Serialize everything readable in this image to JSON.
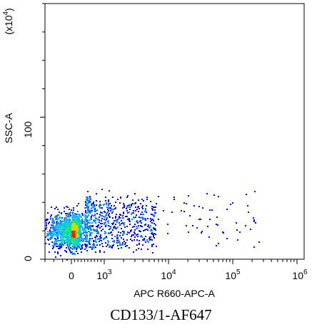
{
  "caption": "CD133/1-AF647",
  "chart_data": {
    "type": "scatter",
    "plot_style": "flow-cytometry density dot plot",
    "x_axis": {
      "label": "APC R660-APC-A",
      "scale": "biexponential (linear near 0, log above 10^3)",
      "ticks": [
        {
          "value": 0,
          "label": "0"
        },
        {
          "value": 1000,
          "label": "10",
          "exp": "3"
        },
        {
          "value": 10000,
          "label": "10",
          "exp": "4"
        },
        {
          "value": 100000,
          "label": "10",
          "exp": "5"
        },
        {
          "value": 1000000,
          "label": "10",
          "exp": "6"
        }
      ]
    },
    "y_axis": {
      "label": "SSC-A",
      "multiplier_prefix": "(x10",
      "multiplier_exp": "4",
      "multiplier_suffix": ")",
      "range": [
        0,
        180
      ],
      "ticks": [
        {
          "value": 0,
          "label": "0"
        },
        {
          "value": 100,
          "label": "100"
        }
      ]
    },
    "population": {
      "peak_x": 0,
      "peak_y": 20,
      "note": "dense cluster near x≈0, y≈10–30; sparse tail toward x≈10^4–10^5, y up to ~50"
    },
    "density_colors": [
      "#0000ff",
      "#0080ff",
      "#00c0ff",
      "#00e0a0",
      "#40e040",
      "#c0e000",
      "#ffc000",
      "#ff2000"
    ]
  }
}
